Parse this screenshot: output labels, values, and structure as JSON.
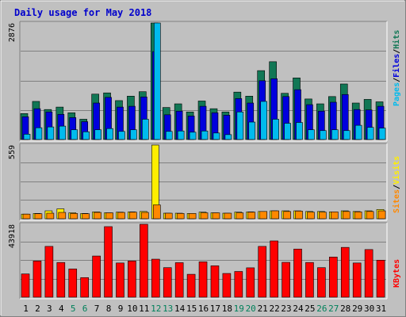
{
  "chart_data": [
    {
      "type": "bar",
      "panel": "hits-files-pages",
      "title": "Daily usage for May 2018",
      "ymax_label": "2876",
      "ylim": [
        0,
        2876
      ],
      "grid": true,
      "legend_labels": [
        "Pages",
        "Files",
        "Hits"
      ],
      "legend_separator": "/",
      "legend_placement": "right-vertical",
      "colors": {
        "hits": "#117755",
        "files": "#0000dd",
        "pages": "#00bbee"
      },
      "categories": [
        "1",
        "2",
        "3",
        "4",
        "5",
        "6",
        "7",
        "8",
        "9",
        "10",
        "11",
        "12",
        "13",
        "14",
        "15",
        "16",
        "17",
        "18",
        "19",
        "20",
        "21",
        "22",
        "23",
        "24",
        "25",
        "26",
        "27",
        "28",
        "29",
        "30",
        "31"
      ],
      "series": [
        {
          "key": "hits",
          "name": "Hits",
          "values": [
            640,
            940,
            740,
            800,
            660,
            500,
            1120,
            1150,
            960,
            1070,
            1180,
            2876,
            790,
            880,
            680,
            950,
            760,
            680,
            1170,
            1070,
            1700,
            1920,
            1140,
            1520,
            1000,
            880,
            1060,
            1370,
            900,
            990,
            930
          ]
        },
        {
          "key": "files",
          "name": "Files",
          "values": [
            560,
            760,
            680,
            620,
            540,
            440,
            900,
            1040,
            800,
            820,
            1050,
            2170,
            610,
            700,
            580,
            820,
            660,
            600,
            1010,
            900,
            1450,
            1500,
            1060,
            1230,
            860,
            700,
            920,
            1110,
            740,
            730,
            820
          ]
        },
        {
          "key": "pages",
          "name": "Pages",
          "values": [
            130,
            290,
            310,
            330,
            240,
            190,
            240,
            270,
            200,
            240,
            500,
            2876,
            200,
            210,
            180,
            210,
            160,
            120,
            680,
            430,
            940,
            500,
            400,
            420,
            240,
            220,
            240,
            220,
            350,
            300,
            280
          ]
        }
      ]
    },
    {
      "type": "bar",
      "panel": "visits-sites",
      "ymax_label": "559",
      "ylim": [
        0,
        559
      ],
      "grid": true,
      "legend_labels": [
        "Sites",
        "Visits"
      ],
      "legend_separator": "/",
      "legend_placement": "right-vertical",
      "colors": {
        "visits": "#ffee00",
        "sites": "#ff8800"
      },
      "categories": [
        "1",
        "2",
        "3",
        "4",
        "5",
        "6",
        "7",
        "8",
        "9",
        "10",
        "11",
        "12",
        "13",
        "14",
        "15",
        "16",
        "17",
        "18",
        "19",
        "20",
        "21",
        "22",
        "23",
        "24",
        "25",
        "26",
        "27",
        "28",
        "29",
        "30",
        "31"
      ],
      "series": [
        {
          "key": "visits",
          "name": "Visits",
          "values": [
            35,
            40,
            60,
            75,
            45,
            40,
            52,
            45,
            50,
            52,
            55,
            559,
            42,
            42,
            40,
            50,
            45,
            42,
            50,
            52,
            55,
            60,
            60,
            60,
            55,
            55,
            52,
            60,
            55,
            60,
            70
          ]
        },
        {
          "key": "sites",
          "name": "Sites",
          "values": [
            35,
            38,
            42,
            48,
            40,
            38,
            48,
            45,
            48,
            50,
            48,
            105,
            42,
            40,
            40,
            45,
            45,
            42,
            45,
            50,
            55,
            60,
            55,
            58,
            50,
            50,
            52,
            55,
            52,
            55,
            60
          ]
        }
      ]
    },
    {
      "type": "bar",
      "panel": "kbytes",
      "ymax_label": "43918",
      "ylim": [
        0,
        43918
      ],
      "grid": true,
      "legend_labels": [
        "KBytes"
      ],
      "legend_placement": "right-vertical",
      "colors": {
        "kbytes": "#ff0000"
      },
      "categories": [
        "1",
        "2",
        "3",
        "4",
        "5",
        "6",
        "7",
        "8",
        "9",
        "10",
        "11",
        "12",
        "13",
        "14",
        "15",
        "16",
        "17",
        "18",
        "19",
        "20",
        "21",
        "22",
        "23",
        "24",
        "25",
        "26",
        "27",
        "28",
        "29",
        "30",
        "31"
      ],
      "series": [
        {
          "key": "kbytes",
          "name": "KBytes",
          "values": [
            14000,
            21800,
            30600,
            20900,
            17000,
            11800,
            24800,
            42500,
            20600,
            21800,
            43918,
            22900,
            17800,
            20800,
            13800,
            21300,
            18900,
            14300,
            15500,
            17700,
            30600,
            33900,
            21000,
            29000,
            20900,
            17800,
            24200,
            30000,
            20600,
            28700,
            22300
          ]
        }
      ]
    }
  ],
  "x_labels": [
    {
      "label": "1",
      "weekend": false
    },
    {
      "label": "2",
      "weekend": false
    },
    {
      "label": "3",
      "weekend": false
    },
    {
      "label": "4",
      "weekend": false
    },
    {
      "label": "5",
      "weekend": true
    },
    {
      "label": "6",
      "weekend": true
    },
    {
      "label": "7",
      "weekend": false
    },
    {
      "label": "8",
      "weekend": false
    },
    {
      "label": "9",
      "weekend": false
    },
    {
      "label": "10",
      "weekend": false
    },
    {
      "label": "11",
      "weekend": false
    },
    {
      "label": "12",
      "weekend": true
    },
    {
      "label": "13",
      "weekend": true
    },
    {
      "label": "14",
      "weekend": false
    },
    {
      "label": "15",
      "weekend": false
    },
    {
      "label": "16",
      "weekend": false
    },
    {
      "label": "17",
      "weekend": false
    },
    {
      "label": "18",
      "weekend": false
    },
    {
      "label": "19",
      "weekend": true
    },
    {
      "label": "20",
      "weekend": true
    },
    {
      "label": "21",
      "weekend": false
    },
    {
      "label": "22",
      "weekend": false
    },
    {
      "label": "23",
      "weekend": false
    },
    {
      "label": "24",
      "weekend": false
    },
    {
      "label": "25",
      "weekend": false
    },
    {
      "label": "26",
      "weekend": true
    },
    {
      "label": "27",
      "weekend": true
    },
    {
      "label": "28",
      "weekend": false
    },
    {
      "label": "29",
      "weekend": false
    },
    {
      "label": "30",
      "weekend": false
    },
    {
      "label": "31",
      "weekend": false
    }
  ],
  "colors": {
    "background": "#c0c0c0",
    "title": "#0000cc",
    "weekday_label": "#000000",
    "weekend_label": "#00805a",
    "grid": "#808080",
    "label_text": "#000000"
  }
}
